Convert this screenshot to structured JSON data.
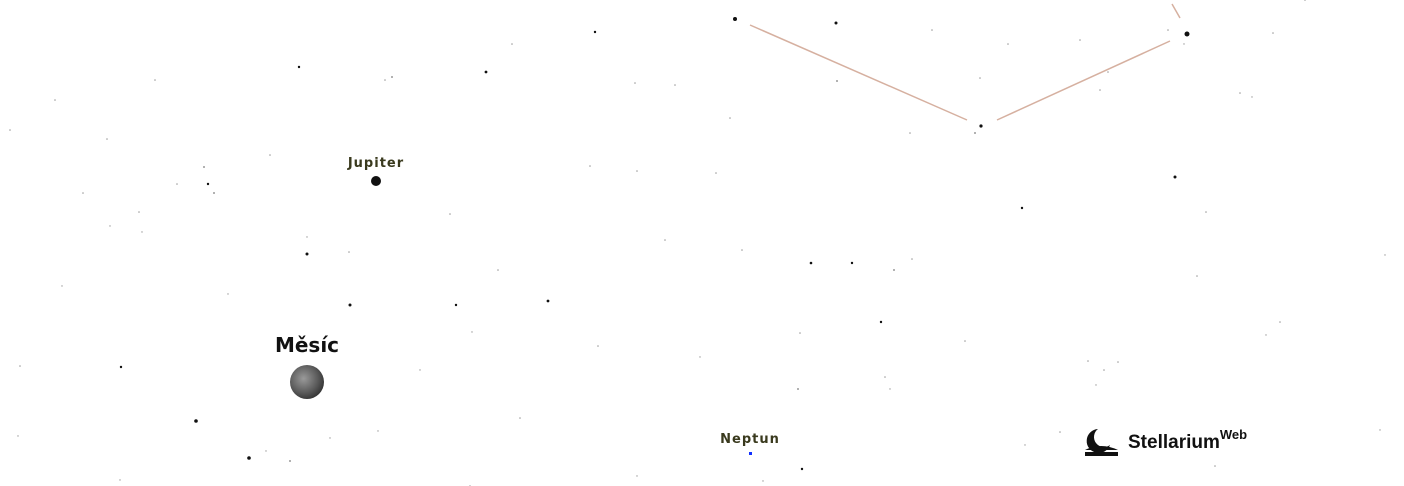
{
  "sky": {
    "planets": [
      {
        "label": "Jupiter"
      },
      {
        "label": "Měsíc"
      },
      {
        "label": "Neptun"
      }
    ]
  },
  "logo": {
    "name": "Stellarium",
    "suffix": "Web"
  }
}
